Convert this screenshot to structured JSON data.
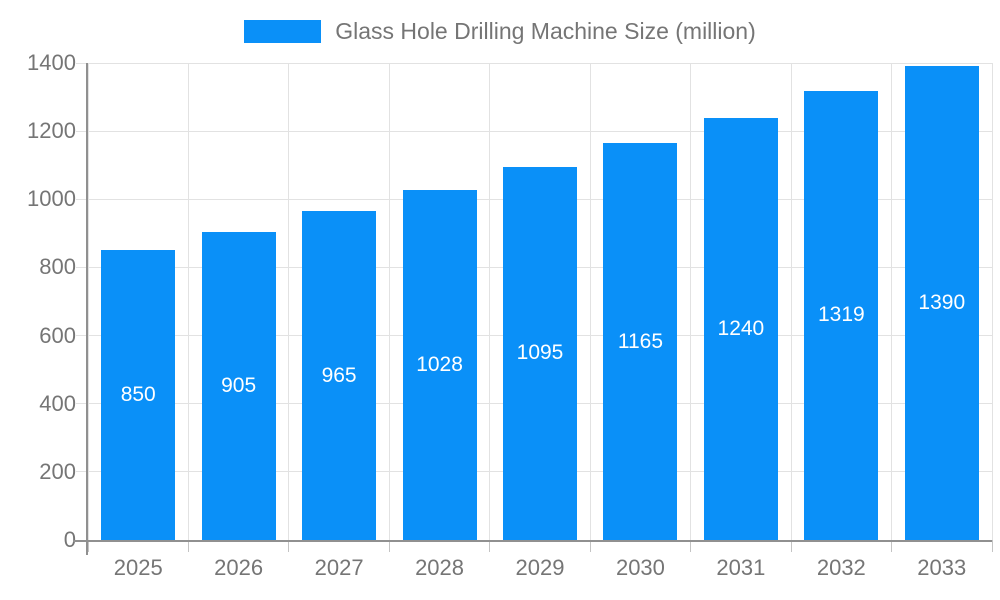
{
  "chart_data": {
    "type": "bar",
    "title": "",
    "legend": {
      "label": "Glass Hole Drilling Machine Size (million)",
      "position": "top-center"
    },
    "categories": [
      "2025",
      "2026",
      "2027",
      "2028",
      "2029",
      "2030",
      "2031",
      "2032",
      "2033"
    ],
    "series": [
      {
        "name": "Glass Hole Drilling Machine Size (million)",
        "values": [
          850,
          905,
          965,
          1028,
          1095,
          1165,
          1240,
          1319,
          1390
        ]
      }
    ],
    "value_labels": [
      "850",
      "905",
      "965",
      "1028",
      "1095",
      "1165",
      "1240",
      "1319",
      "1390"
    ],
    "xlabel": "",
    "ylabel": "",
    "ylim": [
      0,
      1400
    ],
    "yticks": [
      0,
      200,
      400,
      600,
      800,
      1000,
      1200,
      1400
    ],
    "grid": true,
    "colors": {
      "bar": "#0a90f8",
      "bar_value_text": "#ffffff",
      "axis_text": "#757575",
      "grid_line": "#e2e2e2",
      "axis_line": "#909090",
      "tick_mark": "#c4c4c4",
      "background": "#ffffff"
    }
  }
}
